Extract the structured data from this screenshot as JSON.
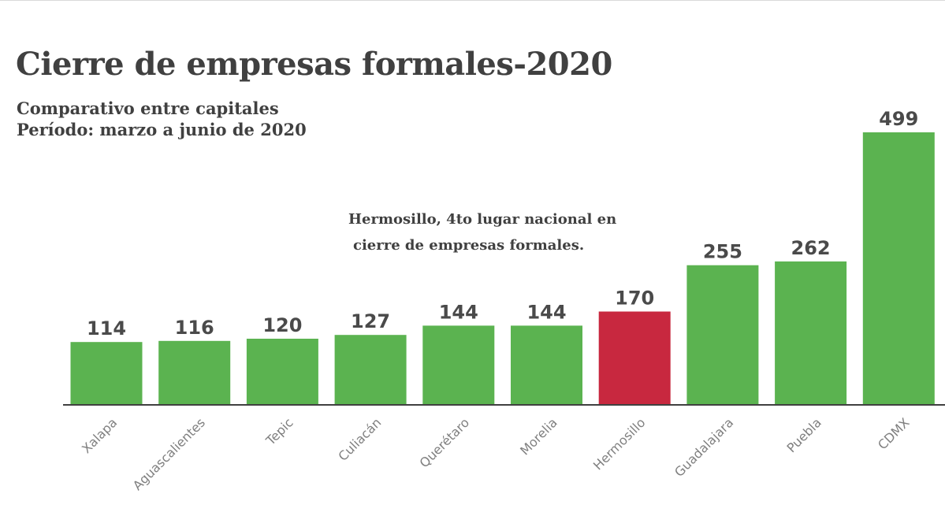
{
  "title": "Cierre de empresas formales-2020",
  "subtitle_lines": [
    "Comparativo entre capitales",
    "Período: marzo a junio de 2020"
  ],
  "annotation_lines": [
    "Hermosillo, 4to lugar nacional en",
    "cierre de empresas formales."
  ],
  "colors": {
    "default_bar": "#5bb350",
    "highlight_bar": "#c8283f"
  },
  "chart_data": {
    "type": "bar",
    "title": "Cierre de empresas formales-2020",
    "subtitle": "Comparativo entre capitales / Período: marzo a junio de 2020",
    "categories": [
      "Xalapa",
      "Aguascalientes",
      "Tepic",
      "Culiacán",
      "Querétaro",
      "Morelia",
      "Hermosillo",
      "Guadalajara",
      "Puebla",
      "CDMX"
    ],
    "values": [
      114,
      116,
      120,
      127,
      144,
      144,
      170,
      255,
      262,
      499
    ],
    "value_labels": [
      "114",
      "116",
      "120",
      "127",
      "144",
      "144",
      "170",
      "255",
      "262",
      "499"
    ],
    "highlight_category": "Hermosillo",
    "ylim": [
      0,
      500
    ],
    "grid": false,
    "legend": "none",
    "data_labels": true
  }
}
